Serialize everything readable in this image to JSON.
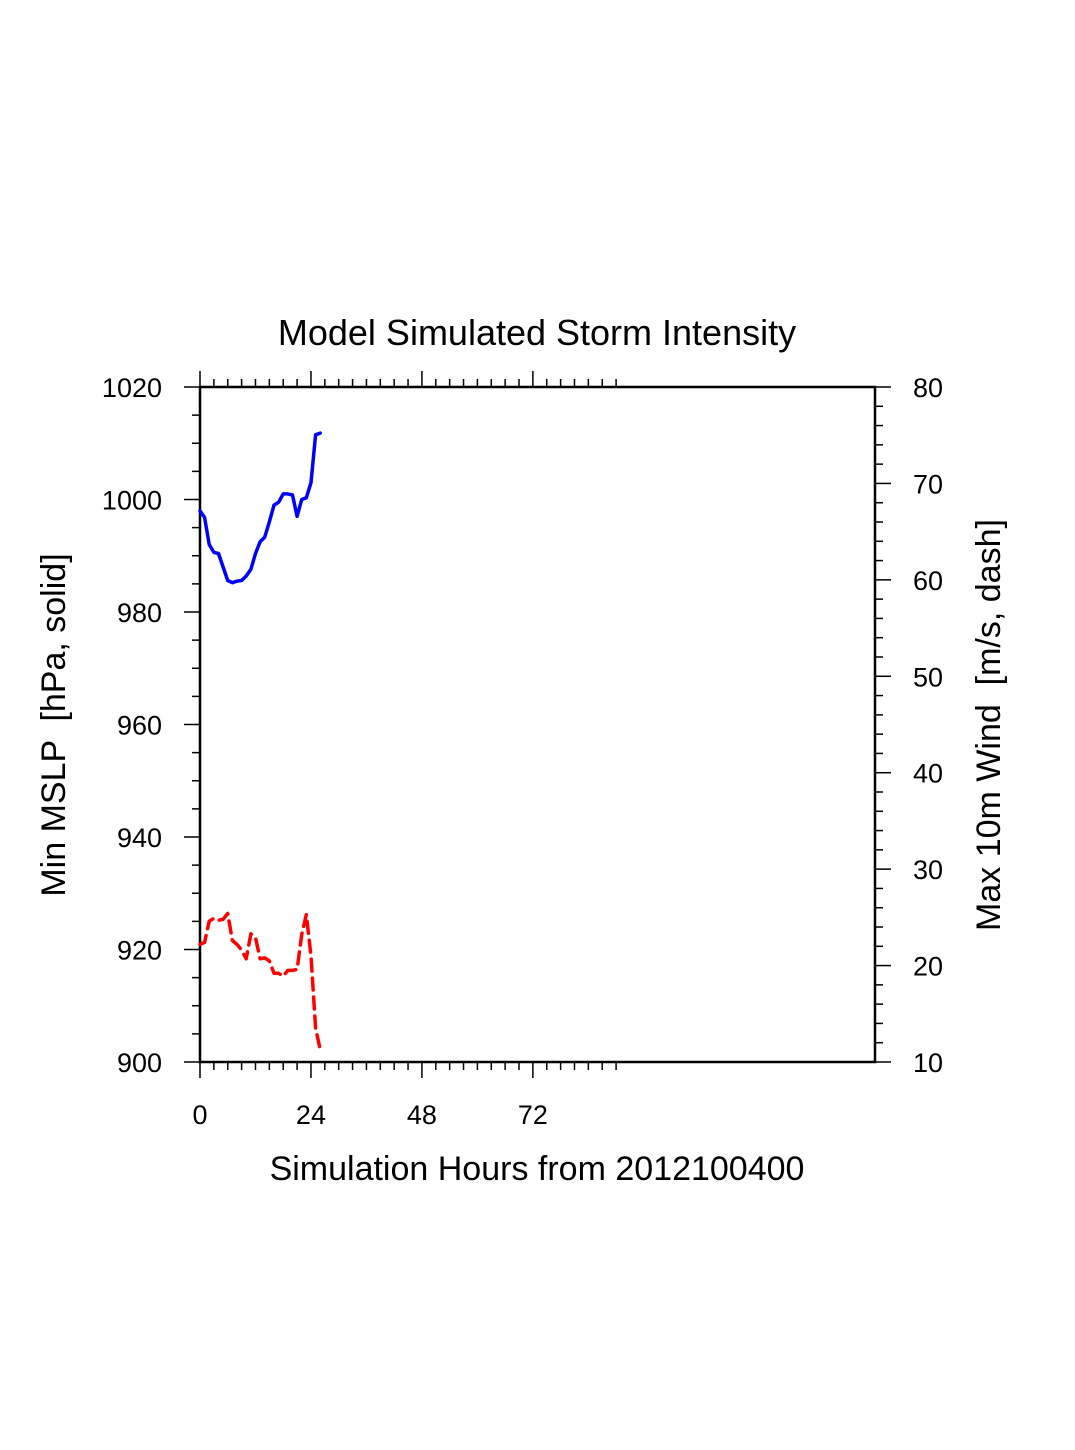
{
  "chart_data": {
    "type": "line",
    "title": "Model Simulated Storm Intensity",
    "xlabel": "Simulation Hours from 2012100400",
    "ylabel_left": "Min MSLP  [hPa, solid]",
    "ylabel_right": "Max 10m Wind  [m/s, dash]",
    "xlim": [
      0,
      146
    ],
    "ylim_left": [
      900,
      1020
    ],
    "ylim_right": [
      10,
      80
    ],
    "x_ticks": [
      0,
      24,
      48,
      72
    ],
    "y_ticks_left": [
      900,
      920,
      940,
      960,
      980,
      1000,
      1020
    ],
    "y_ticks_right": [
      10,
      20,
      30,
      40,
      50,
      60,
      70,
      80
    ],
    "grid": false,
    "series": [
      {
        "name": "Min MSLP",
        "axis": "left",
        "style": "solid",
        "color": "#0000ff",
        "x": [
          0,
          1,
          2,
          3,
          4,
          5,
          6,
          7,
          8,
          9,
          10,
          11,
          12,
          13,
          14,
          15,
          16,
          17,
          18,
          19,
          20,
          21,
          22,
          23,
          24,
          25,
          26
        ],
        "values": [
          998.0,
          996.8,
          992.0,
          990.6,
          990.4,
          988.0,
          985.6,
          985.2,
          985.5,
          985.6,
          986.4,
          987.6,
          990.4,
          992.5,
          993.3,
          996.0,
          999.0,
          999.5,
          1001.0,
          1001.0,
          1000.8,
          997.0,
          1000.0,
          1000.3,
          1003.0,
          1011.5,
          1011.8
        ]
      },
      {
        "name": "Max 10m Wind",
        "axis": "right",
        "style": "dashed",
        "color": "#ff0000",
        "x": [
          0,
          1,
          2,
          3,
          4,
          5,
          6,
          7,
          8,
          9,
          10,
          11,
          12,
          13,
          14,
          15,
          16,
          17,
          18,
          19,
          20,
          21,
          22,
          23,
          24,
          25,
          26
        ],
        "values": [
          22.2,
          22.4,
          24.6,
          24.9,
          24.7,
          24.8,
          25.4,
          22.6,
          22.2,
          21.6,
          20.7,
          23.3,
          22.9,
          20.7,
          20.8,
          20.5,
          19.2,
          19.2,
          18.9,
          19.5,
          19.5,
          19.6,
          23.2,
          25.3,
          21.0,
          13.5,
          11.3
        ]
      }
    ]
  }
}
